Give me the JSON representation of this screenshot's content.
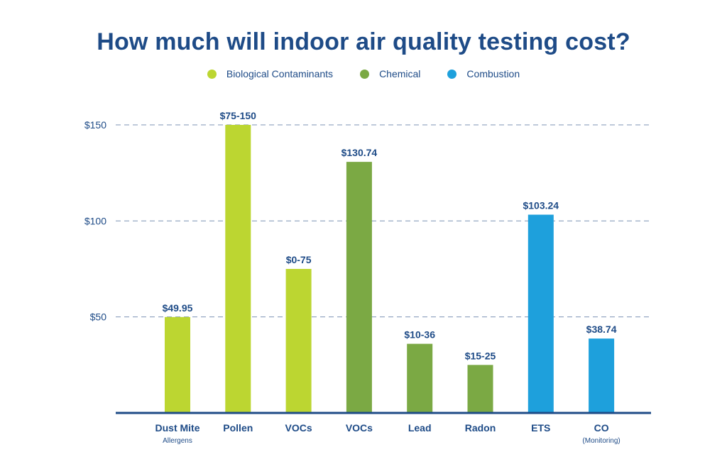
{
  "chart_data": {
    "type": "bar",
    "title": "How much will indoor air quality testing cost?",
    "ylim": [
      0,
      150
    ],
    "yticks": [
      50,
      100,
      150
    ],
    "ytick_labels": [
      "$50",
      "$100",
      "$150"
    ],
    "grid": "horizontal dashed",
    "legend_position": "top-center",
    "legend": [
      {
        "name": "Biological Contaminants",
        "color": "#bcd631"
      },
      {
        "name": "Chemical",
        "color": "#7ba944"
      },
      {
        "name": "Combustion",
        "color": "#1ea0dc"
      }
    ],
    "categories": [
      {
        "label": "Dust Mite",
        "sublabel": "Allergens",
        "value": 49.95,
        "value_label": "$49.95",
        "group": 0
      },
      {
        "label": "Pollen",
        "sublabel": "",
        "value": 150,
        "value_label": "$75-150",
        "group": 0
      },
      {
        "label": "VOCs",
        "sublabel": "",
        "value": 75,
        "value_label": "$0-75",
        "group": 0
      },
      {
        "label": "VOCs",
        "sublabel": "",
        "value": 130.74,
        "value_label": "$130.74",
        "group": 1
      },
      {
        "label": "Lead",
        "sublabel": "",
        "value": 36,
        "value_label": "$10-36",
        "group": 1
      },
      {
        "label": "Radon",
        "sublabel": "",
        "value": 25,
        "value_label": "$15-25",
        "group": 1
      },
      {
        "label": "ETS",
        "sublabel": "",
        "value": 103.24,
        "value_label": "$103.24",
        "group": 2
      },
      {
        "label": "CO",
        "sublabel": "(Monitoring)",
        "value": 38.74,
        "value_label": "$38.74",
        "group": 2
      }
    ]
  },
  "colors": {
    "title": "#1e4b87",
    "axis": "#1e4b87",
    "grid": "#7d93b5"
  }
}
